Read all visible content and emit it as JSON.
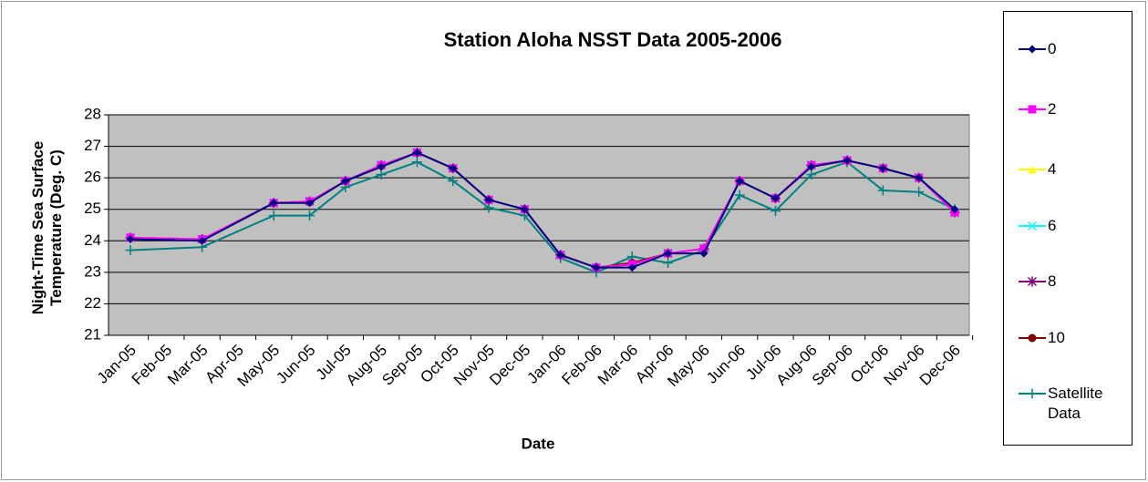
{
  "chart_data": {
    "type": "line",
    "title": "Station Aloha NSST Data 2005-2006",
    "x_label": "Date",
    "y_label": "Night-Time Sea Surface Temperature (Deg. C)",
    "categories": [
      "Jan-05",
      "Feb-05",
      "Mar-05",
      "Apr-05",
      "May-05",
      "Jun-05",
      "Jul-05",
      "Aug-05",
      "Sep-05",
      "Oct-05",
      "Nov-05",
      "Dec-05",
      "Jan-06",
      "Feb-06",
      "Mar-06",
      "Apr-06",
      "May-06",
      "Jun-06",
      "Jul-06",
      "Aug-06",
      "Sep-06",
      "Oct-06",
      "Nov-06",
      "Dec-06"
    ],
    "ylim": [
      21,
      28
    ],
    "yticks": [
      21,
      22,
      23,
      24,
      25,
      26,
      27,
      28
    ],
    "grid": true,
    "connect_gaps": true,
    "legend": "right",
    "series": [
      {
        "name": "0",
        "color": "#000080",
        "marker": "diamond",
        "values": [
          24.05,
          null,
          24.0,
          null,
          25.2,
          25.2,
          25.9,
          26.35,
          26.8,
          26.3,
          25.3,
          25.0,
          23.55,
          23.15,
          23.15,
          23.6,
          23.6,
          25.9,
          25.35,
          26.35,
          26.55,
          26.3,
          26.0,
          25.0
        ]
      },
      {
        "name": "2",
        "color": "#ff00ff",
        "marker": "square",
        "values": [
          24.1,
          null,
          24.05,
          null,
          25.2,
          25.25,
          25.9,
          26.4,
          26.8,
          26.3,
          25.3,
          25.0,
          23.55,
          23.15,
          23.25,
          23.6,
          23.75,
          25.9,
          25.35,
          26.4,
          26.55,
          26.3,
          26.0,
          24.9
        ]
      },
      {
        "name": "4",
        "color": "#ffff00",
        "marker": "triangle",
        "values": [
          24.1,
          null,
          24.05,
          null,
          25.2,
          25.25,
          25.9,
          26.4,
          26.8,
          26.3,
          25.3,
          25.0,
          23.55,
          23.15,
          23.25,
          23.6,
          23.75,
          25.9,
          25.35,
          26.4,
          26.55,
          26.3,
          26.0,
          24.9
        ]
      },
      {
        "name": "6",
        "color": "#00ffff",
        "marker": "x",
        "values": [
          24.1,
          null,
          24.05,
          null,
          25.2,
          25.25,
          25.9,
          26.4,
          26.8,
          26.3,
          25.3,
          25.0,
          23.55,
          23.15,
          23.25,
          23.6,
          23.75,
          25.9,
          25.35,
          26.4,
          26.55,
          26.3,
          26.0,
          24.9
        ]
      },
      {
        "name": "8",
        "color": "#800080",
        "marker": "star",
        "values": [
          24.1,
          null,
          24.05,
          null,
          25.2,
          25.25,
          25.9,
          26.4,
          26.8,
          26.3,
          25.3,
          25.0,
          23.55,
          23.15,
          23.25,
          23.6,
          23.75,
          25.9,
          25.35,
          26.4,
          26.55,
          26.3,
          26.0,
          24.9
        ]
      },
      {
        "name": "10",
        "color": "#800000",
        "marker": "circle",
        "values": [
          24.1,
          null,
          24.05,
          null,
          25.2,
          25.25,
          25.9,
          26.4,
          26.8,
          26.3,
          25.3,
          25.0,
          23.55,
          23.15,
          23.3,
          23.6,
          23.75,
          25.9,
          25.35,
          26.4,
          26.55,
          26.3,
          26.0,
          24.9
        ]
      },
      {
        "name": "Satellite Data",
        "color": "#008080",
        "marker": "plus",
        "values": [
          23.7,
          null,
          23.8,
          null,
          24.8,
          24.8,
          25.7,
          26.1,
          26.5,
          25.9,
          25.05,
          24.8,
          23.45,
          23.0,
          23.5,
          23.3,
          23.7,
          25.45,
          24.95,
          26.1,
          26.5,
          25.6,
          25.55,
          25.0
        ]
      }
    ]
  }
}
